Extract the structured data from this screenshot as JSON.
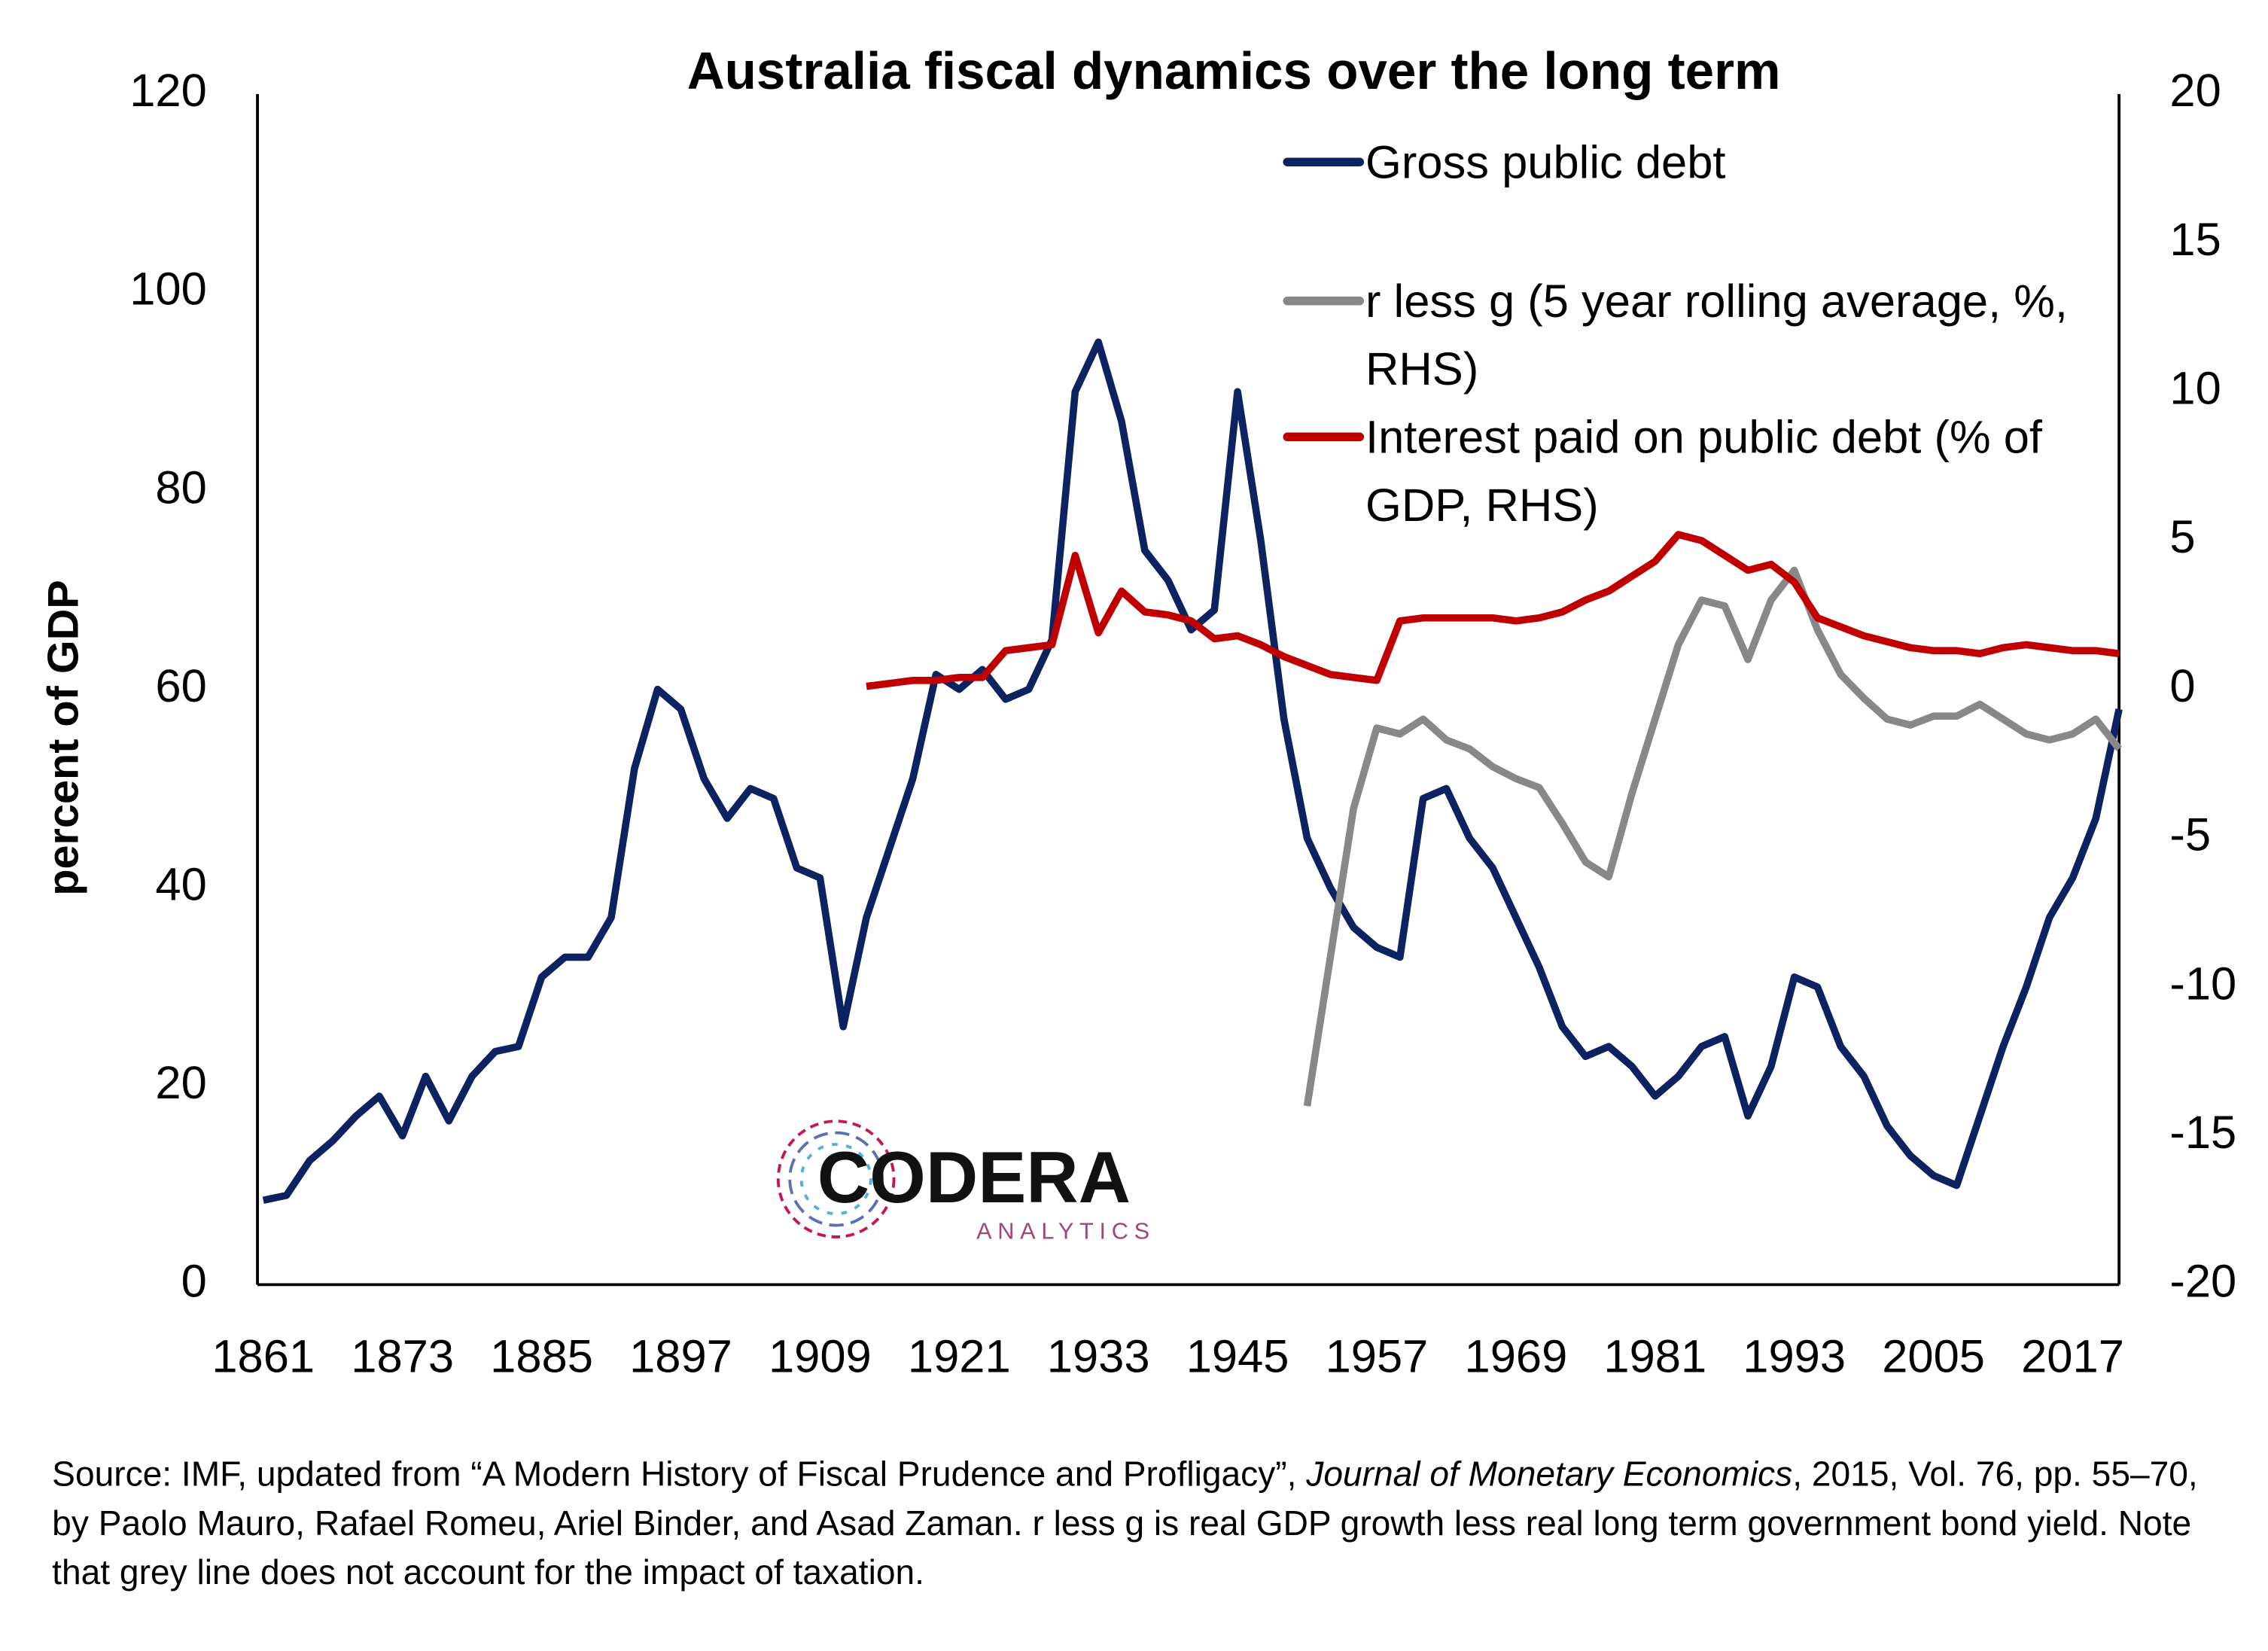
{
  "chart_data": {
    "type": "line",
    "title": "Australia fiscal dynamics over the long term",
    "y_label": "percent of GDP",
    "x": [
      1861,
      1863,
      1865,
      1867,
      1869,
      1871,
      1873,
      1875,
      1877,
      1879,
      1881,
      1883,
      1885,
      1887,
      1889,
      1891,
      1893,
      1895,
      1897,
      1899,
      1901,
      1903,
      1905,
      1907,
      1909,
      1911,
      1913,
      1915,
      1917,
      1919,
      1921,
      1923,
      1925,
      1927,
      1929,
      1931,
      1933,
      1935,
      1937,
      1939,
      1941,
      1943,
      1945,
      1947,
      1949,
      1951,
      1953,
      1955,
      1957,
      1959,
      1961,
      1963,
      1965,
      1967,
      1969,
      1971,
      1973,
      1975,
      1977,
      1979,
      1981,
      1983,
      1985,
      1987,
      1989,
      1991,
      1993,
      1995,
      1997,
      1999,
      2001,
      2003,
      2005,
      2007,
      2009,
      2011,
      2013,
      2015,
      2017,
      2019,
      2021
    ],
    "xlim": [
      1860.5,
      2021
    ],
    "xticks": [
      1861,
      1873,
      1885,
      1897,
      1909,
      1921,
      1933,
      1945,
      1957,
      1969,
      1981,
      1993,
      2005,
      2017
    ],
    "ylim": [
      0,
      120
    ],
    "yticks": [
      0,
      20,
      40,
      60,
      80,
      100,
      120
    ],
    "y2lim": [
      -20,
      20
    ],
    "y2ticks": [
      -20,
      -15,
      -10,
      -5,
      0,
      5,
      10,
      15,
      20
    ],
    "grid": false,
    "legend": "upper right",
    "series": [
      {
        "name": "Gross public debt",
        "color": "#0d2260",
        "values": [
          8.5,
          9,
          12.5,
          14.5,
          17,
          19,
          15,
          21,
          16.5,
          21,
          23.5,
          24,
          31,
          33,
          33,
          37,
          52,
          60,
          58,
          51,
          47,
          50,
          49,
          42,
          41,
          26,
          37,
          44,
          51,
          61.5,
          60,
          62,
          59,
          60,
          65,
          90,
          95,
          87,
          74,
          71,
          66,
          68,
          90,
          75,
          57,
          45,
          40,
          36,
          34,
          33,
          49,
          50,
          45,
          42,
          37,
          32,
          26,
          23,
          24,
          22,
          19,
          21,
          24,
          25,
          17,
          22,
          31,
          30,
          24,
          21,
          16,
          13,
          11,
          10,
          17,
          24,
          30,
          37,
          41,
          47,
          58
        ]
      },
      {
        "name": "r less g (5 year rolling average, %, RHS)",
        "color": "#888888",
        "axis": "y2",
        "values": [
          null,
          null,
          null,
          null,
          null,
          null,
          null,
          null,
          null,
          null,
          null,
          null,
          null,
          null,
          null,
          null,
          null,
          null,
          null,
          null,
          null,
          null,
          null,
          null,
          null,
          null,
          null,
          null,
          null,
          null,
          null,
          null,
          null,
          null,
          null,
          null,
          null,
          null,
          null,
          null,
          null,
          null,
          null,
          null,
          null,
          -14,
          -9,
          -4,
          -1.3,
          -1.5,
          -1,
          -1.7,
          -2,
          -2.6,
          -3,
          -3.3,
          -4.5,
          -5.8,
          -6.3,
          -3.5,
          -1,
          1.5,
          3,
          2.8,
          1,
          3,
          4,
          2,
          0.5,
          -0.3,
          -1,
          -1.2,
          -0.9,
          -0.9,
          -0.5,
          -1,
          -1.5,
          -1.7,
          -1.5,
          -1,
          -2
        ]
      },
      {
        "name": "Interest paid on public debt (% of GDP, RHS)",
        "color": "#c00000",
        "axis": "y2",
        "values": [
          null,
          null,
          null,
          null,
          null,
          null,
          null,
          null,
          null,
          null,
          null,
          null,
          null,
          null,
          null,
          null,
          null,
          null,
          null,
          null,
          null,
          null,
          null,
          null,
          null,
          null,
          0.1,
          0.2,
          0.3,
          0.3,
          0.4,
          0.4,
          1.3,
          1.4,
          1.5,
          4.5,
          1.9,
          3.3,
          2.6,
          2.5,
          2.3,
          1.7,
          1.8,
          1.5,
          1.1,
          0.8,
          0.5,
          0.4,
          0.3,
          2.3,
          2.4,
          2.4,
          2.4,
          2.4,
          2.3,
          2.4,
          2.6,
          3.0,
          3.3,
          3.8,
          4.3,
          5.2,
          5.0,
          4.5,
          4.0,
          4.2,
          3.6,
          2.4,
          2.1,
          1.8,
          1.6,
          1.4,
          1.3,
          1.3,
          1.2,
          1.4,
          1.5,
          1.4,
          1.3,
          1.3,
          1.2
        ]
      }
    ]
  },
  "logo": {
    "name": "CODERA",
    "sub": "ANALYTICS"
  },
  "source": [
    "Source: IMF, updated from “A Modern History of Fiscal Prudence and Profligacy”, ",
    "Journal of Monetary Economics",
    ", 2015, Vol. 76, pp. 55–70, by Paolo Mauro, Rafael Romeu, Ariel Binder, and Asad Zaman. r less g is real GDP growth less real long term government bond yield. Note that grey line does not account for the impact of taxation."
  ]
}
